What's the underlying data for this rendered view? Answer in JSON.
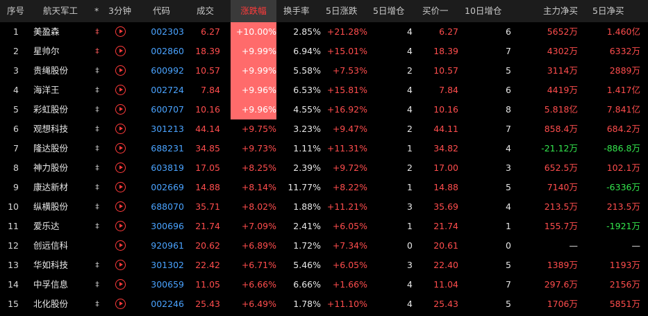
{
  "headers": {
    "idx": "序号",
    "name": "航天军工",
    "mark": "*",
    "m3": "3分钟",
    "code": "代码",
    "price": "成交",
    "chg": "涨跌幅",
    "turn": "换手率",
    "d5chg": "5日涨跌",
    "d5add": "5日增仓",
    "buy1": "买价一",
    "d10add": "10日增仓",
    "netbuy": "主力净买",
    "d5net": "5日净买"
  },
  "rows": [
    {
      "idx": "1",
      "name": "美盈森",
      "mark": "‡",
      "code": "002303",
      "price": "6.27",
      "chg": "+10.00%",
      "turn": "2.85%",
      "d5chg": "+21.28%",
      "d5add": "4",
      "buy1": "6.27",
      "d10add": "6",
      "netbuy": "5652万",
      "d5net": "1.460亿",
      "limit": true,
      "netbuy_color": "red",
      "d5net_color": "red",
      "mark_color": "red"
    },
    {
      "idx": "2",
      "name": "星帅尔",
      "mark": "‡",
      "code": "002860",
      "price": "18.39",
      "chg": "+9.99%",
      "turn": "6.94%",
      "d5chg": "+15.01%",
      "d5add": "4",
      "buy1": "18.39",
      "d10add": "7",
      "netbuy": "4302万",
      "d5net": "6332万",
      "limit": true,
      "netbuy_color": "red",
      "d5net_color": "red",
      "mark_color": "red"
    },
    {
      "idx": "3",
      "name": "贵绳股份",
      "mark": "‡",
      "code": "600992",
      "price": "10.57",
      "chg": "+9.99%",
      "turn": "5.58%",
      "d5chg": "+7.53%",
      "d5add": "2",
      "buy1": "10.57",
      "d10add": "5",
      "netbuy": "3114万",
      "d5net": "2889万",
      "limit": true,
      "netbuy_color": "red",
      "d5net_color": "red",
      "mark_color": "white"
    },
    {
      "idx": "4",
      "name": "海洋王",
      "mark": "‡",
      "code": "002724",
      "price": "7.84",
      "chg": "+9.96%",
      "turn": "6.53%",
      "d5chg": "+15.81%",
      "d5add": "4",
      "buy1": "7.84",
      "d10add": "6",
      "netbuy": "4419万",
      "d5net": "1.417亿",
      "limit": true,
      "netbuy_color": "red",
      "d5net_color": "red",
      "mark_color": "white"
    },
    {
      "idx": "5",
      "name": "彩虹股份",
      "mark": "‡",
      "code": "600707",
      "price": "10.16",
      "chg": "+9.96%",
      "turn": "4.55%",
      "d5chg": "+16.92%",
      "d5add": "4",
      "buy1": "10.16",
      "d10add": "8",
      "netbuy": "5.818亿",
      "d5net": "7.841亿",
      "limit": true,
      "netbuy_color": "red",
      "d5net_color": "red",
      "mark_color": "white"
    },
    {
      "idx": "6",
      "name": "观想科技",
      "mark": "‡",
      "code": "301213",
      "price": "44.14",
      "chg": "+9.75%",
      "turn": "3.23%",
      "d5chg": "+9.47%",
      "d5add": "2",
      "buy1": "44.11",
      "d10add": "7",
      "netbuy": "858.4万",
      "d5net": "684.2万",
      "limit": false,
      "netbuy_color": "red",
      "d5net_color": "red",
      "mark_color": "white"
    },
    {
      "idx": "7",
      "name": "隆达股份",
      "mark": "‡",
      "code": "688231",
      "price": "34.85",
      "chg": "+9.73%",
      "turn": "1.11%",
      "d5chg": "+11.31%",
      "d5add": "1",
      "buy1": "34.82",
      "d10add": "4",
      "netbuy": "-21.12万",
      "d5net": "-886.8万",
      "limit": false,
      "netbuy_color": "green",
      "d5net_color": "green",
      "mark_color": "white"
    },
    {
      "idx": "8",
      "name": "神力股份",
      "mark": "‡",
      "code": "603819",
      "price": "17.05",
      "chg": "+8.25%",
      "turn": "2.39%",
      "d5chg": "+9.72%",
      "d5add": "2",
      "buy1": "17.00",
      "d10add": "3",
      "netbuy": "652.5万",
      "d5net": "102.1万",
      "limit": false,
      "netbuy_color": "red",
      "d5net_color": "red",
      "mark_color": "white"
    },
    {
      "idx": "9",
      "name": "康达新材",
      "mark": "‡",
      "code": "002669",
      "price": "14.88",
      "chg": "+8.14%",
      "turn": "11.77%",
      "d5chg": "+8.22%",
      "d5add": "1",
      "buy1": "14.88",
      "d10add": "5",
      "netbuy": "7140万",
      "d5net": "-6336万",
      "limit": false,
      "netbuy_color": "red",
      "d5net_color": "green",
      "mark_color": "white"
    },
    {
      "idx": "10",
      "name": "纵横股份",
      "mark": "‡",
      "code": "688070",
      "price": "35.71",
      "chg": "+8.02%",
      "turn": "1.88%",
      "d5chg": "+11.21%",
      "d5add": "3",
      "buy1": "35.69",
      "d10add": "4",
      "netbuy": "213.5万",
      "d5net": "213.5万",
      "limit": false,
      "netbuy_color": "red",
      "d5net_color": "red",
      "mark_color": "white"
    },
    {
      "idx": "11",
      "name": "爱乐达",
      "mark": "‡",
      "code": "300696",
      "price": "21.74",
      "chg": "+7.09%",
      "turn": "2.41%",
      "d5chg": "+6.05%",
      "d5add": "1",
      "buy1": "21.74",
      "d10add": "1",
      "netbuy": "155.7万",
      "d5net": "-1921万",
      "limit": false,
      "netbuy_color": "red",
      "d5net_color": "green",
      "mark_color": "white"
    },
    {
      "idx": "12",
      "name": "创远信科",
      "mark": "",
      "code": "920961",
      "price": "20.62",
      "chg": "+6.89%",
      "turn": "1.72%",
      "d5chg": "+7.34%",
      "d5add": "0",
      "buy1": "20.61",
      "d10add": "0",
      "netbuy": "—",
      "d5net": "—",
      "limit": false,
      "netbuy_color": "white",
      "d5net_color": "white",
      "mark_color": "white"
    },
    {
      "idx": "13",
      "name": "华如科技",
      "mark": "‡",
      "code": "301302",
      "price": "22.42",
      "chg": "+6.71%",
      "turn": "5.46%",
      "d5chg": "+6.05%",
      "d5add": "3",
      "buy1": "22.40",
      "d10add": "5",
      "netbuy": "1389万",
      "d5net": "1193万",
      "limit": false,
      "netbuy_color": "red",
      "d5net_color": "red",
      "mark_color": "white"
    },
    {
      "idx": "14",
      "name": "中孚信息",
      "mark": "‡",
      "code": "300659",
      "price": "11.05",
      "chg": "+6.66%",
      "turn": "6.66%",
      "d5chg": "+1.66%",
      "d5add": "4",
      "buy1": "11.04",
      "d10add": "7",
      "netbuy": "297.6万",
      "d5net": "2156万",
      "limit": false,
      "netbuy_color": "red",
      "d5net_color": "red",
      "mark_color": "white"
    },
    {
      "idx": "15",
      "name": "北化股份",
      "mark": "‡",
      "code": "002246",
      "price": "25.43",
      "chg": "+6.49%",
      "turn": "1.78%",
      "d5chg": "+11.10%",
      "d5add": "4",
      "buy1": "25.43",
      "d10add": "5",
      "netbuy": "1706万",
      "d5net": "5851万",
      "limit": false,
      "netbuy_color": "red",
      "d5net_color": "red",
      "mark_color": "white"
    }
  ],
  "colors": {
    "up": "#ff4d4d",
    "down": "#33e64d",
    "code": "#4aa3ff",
    "limit_bg": "#ff6b6b",
    "header_bg": "#1c1c1c",
    "sort_active": "#ff3b3b"
  }
}
